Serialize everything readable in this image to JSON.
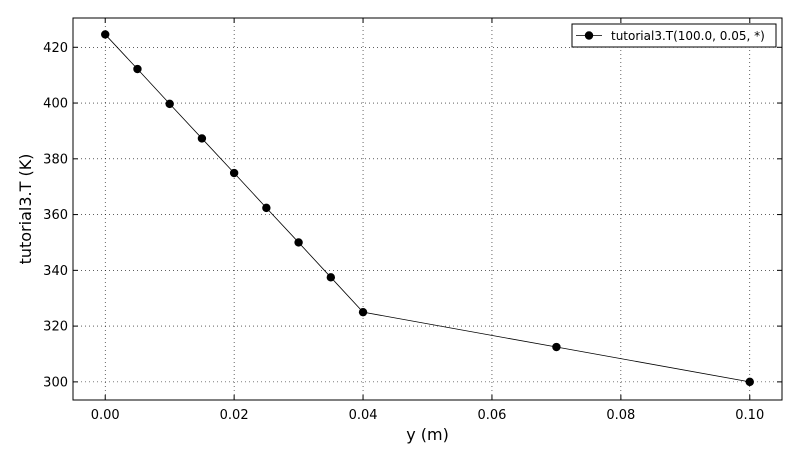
{
  "chart_data": {
    "type": "line",
    "xlabel": "y (m)",
    "ylabel": "tutorial3.T (K)",
    "xlim": [
      -0.005,
      0.105
    ],
    "ylim": [
      293.5,
      430.5
    ],
    "grid": true,
    "legend_position": "top-right",
    "xticks": [
      0.0,
      0.02,
      0.04,
      0.06,
      0.08,
      0.1
    ],
    "xtick_labels": [
      "0.00",
      "0.02",
      "0.04",
      "0.06",
      "0.08",
      "0.10"
    ],
    "yticks": [
      300,
      320,
      340,
      360,
      380,
      400,
      420
    ],
    "ytick_labels": [
      "300",
      "320",
      "340",
      "360",
      "380",
      "400",
      "420"
    ],
    "series": [
      {
        "name": "tutorial3.T(100.0, 0.05, *)",
        "color": "#000000",
        "marker": "circle",
        "x": [
          0.0,
          0.005,
          0.01,
          0.015,
          0.02,
          0.025,
          0.03,
          0.035,
          0.04,
          0.07,
          0.1
        ],
        "y": [
          424.6,
          412.2,
          399.7,
          387.3,
          374.9,
          362.4,
          350.0,
          337.5,
          325.0,
          312.5,
          300.0
        ]
      }
    ]
  }
}
